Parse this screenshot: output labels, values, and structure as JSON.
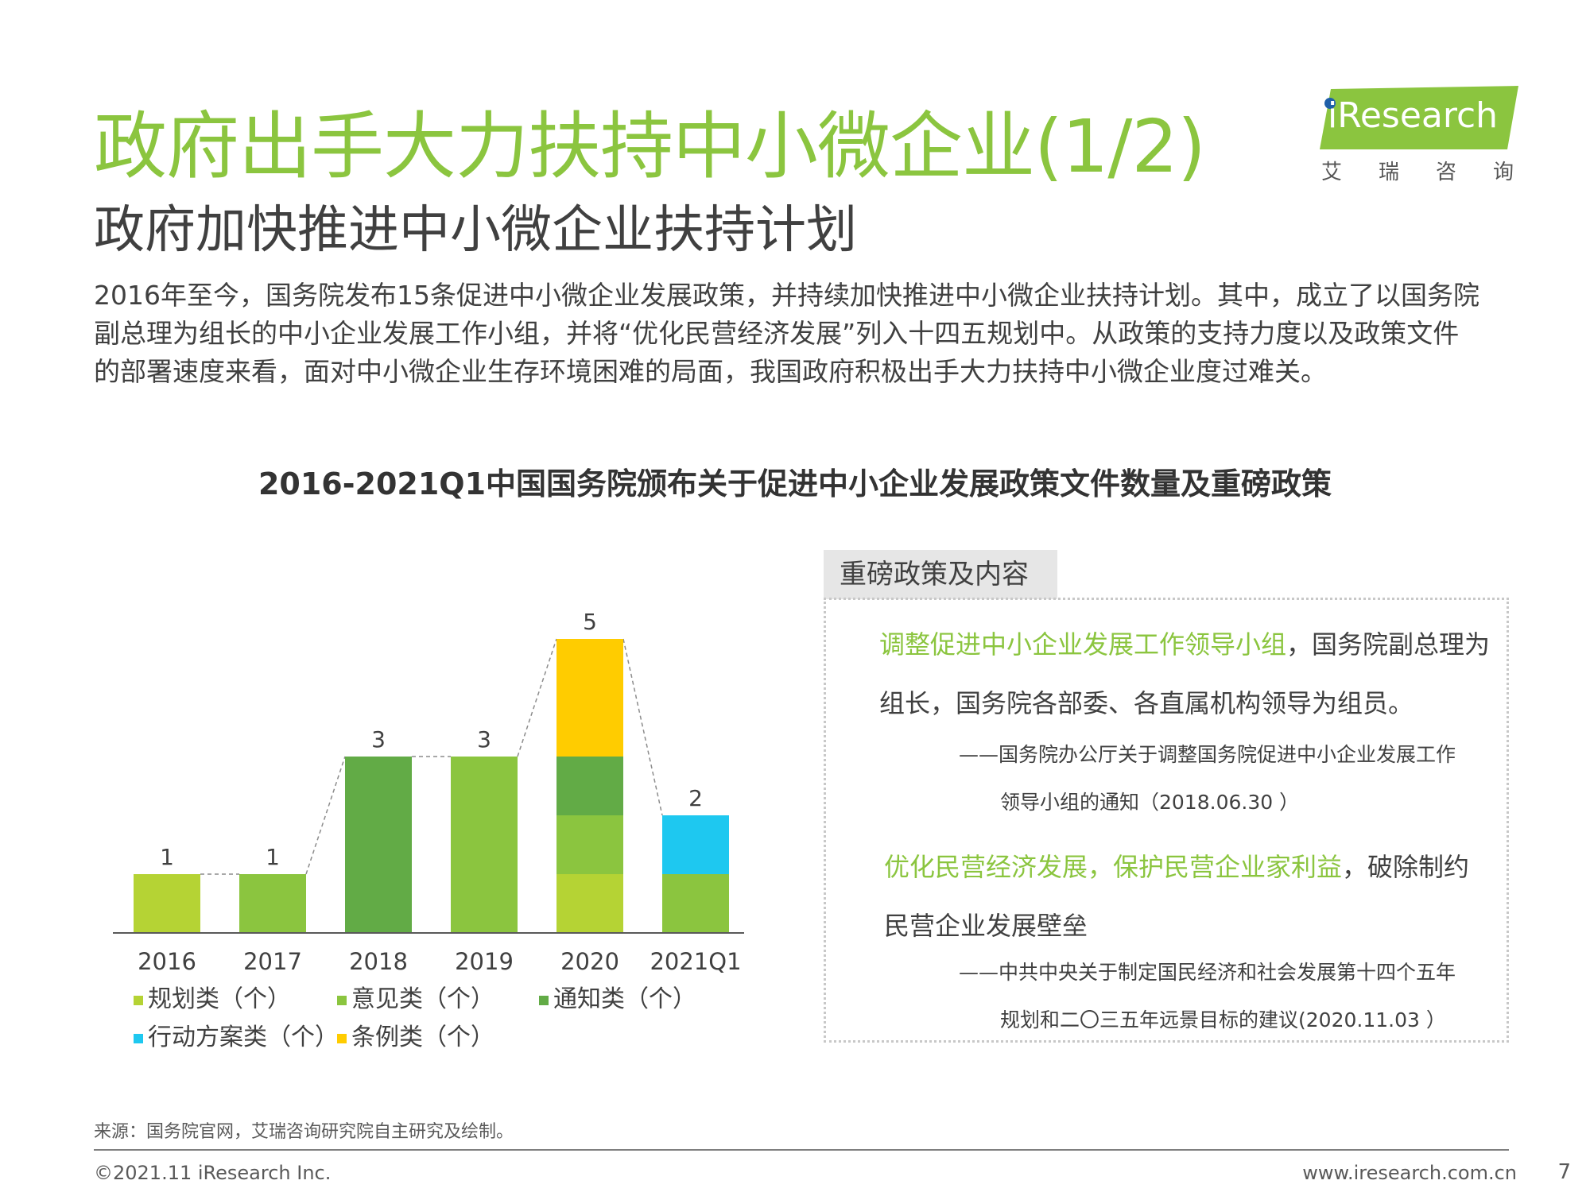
{
  "title": "政府出手大力扶持中小微企业(1/2)",
  "subtitle": "政府加快推进中小微企业扶持计划",
  "intro_lines": [
    "2016年至今，国务院发布15条促进中小微企业发展政策，并持续加快推进中小微企业扶持计划。其中，成立了以国务院",
    "副总理为组长的中小企业发展工作小组，并将“优化民营经济发展”列入十四五规划中。从政策的支持力度以及政策文件",
    "的部署速度来看，面对中小微企业生存环境困难的局面，我国政府积极出手大力扶持中小微企业度过难关。"
  ],
  "logo": {
    "text": "iResearch",
    "sub": "艾瑞咨询",
    "color": "#8bc53f"
  },
  "chart_data": {
    "type": "bar",
    "title": "2016-2021Q1中国国务院颁布关于促进中小企业发展政策文件数量及重磅政策",
    "categories": [
      "2016",
      "2017",
      "2018",
      "2019",
      "2020",
      "2021Q1"
    ],
    "series": [
      {
        "name": "规划类（个）",
        "color": "#b5d334",
        "values": [
          1,
          0,
          0,
          0,
          1,
          0
        ]
      },
      {
        "name": "意见类（个）",
        "color": "#8bc53f",
        "values": [
          0,
          1,
          0,
          3,
          1,
          1
        ]
      },
      {
        "name": "通知类（个）",
        "color": "#62ab46",
        "values": [
          0,
          0,
          3,
          0,
          1,
          0
        ]
      },
      {
        "name": "行动方案类（个）",
        "color": "#1ec8f0",
        "values": [
          0,
          0,
          0,
          0,
          0,
          1
        ]
      },
      {
        "name": "条例类（个）",
        "color": "#ffcc00",
        "values": [
          0,
          0,
          0,
          0,
          2,
          0
        ]
      }
    ],
    "totals": [
      1,
      1,
      3,
      3,
      5,
      2
    ],
    "ylim": [
      0,
      5
    ],
    "grid": false,
    "legend_position": "bottom-left"
  },
  "panel": {
    "tab": "重磅政策及内容",
    "policy1": {
      "highlight": "调整促进中小企业发展工作领导小组",
      "rest_line1": "，国务院副总理为",
      "line2": "组长，国务院各部委、各直属机构领导为组员。",
      "cite_line1": "——国务院办公厅关于调整国务院促进中小企业发展工作",
      "cite_line2": "领导小组的通知（2018.06.30 ）"
    },
    "policy2": {
      "highlight": "优化民营经济发展，保护民营企业家利益",
      "rest_line1": "，破除制约",
      "line2": "民营企业发展壁垒",
      "cite_line1": "——中共中央关于制定国民经济和社会发展第十四个五年",
      "cite_line2": "规划和二〇三五年远景目标的建议(2020.11.03 ）"
    }
  },
  "source": "来源：国务院官网，艾瑞咨询研究院自主研究及绘制。",
  "copyright": "©2021.11 iResearch Inc.",
  "url": "www.iresearch.com.cn",
  "page_number": "7"
}
